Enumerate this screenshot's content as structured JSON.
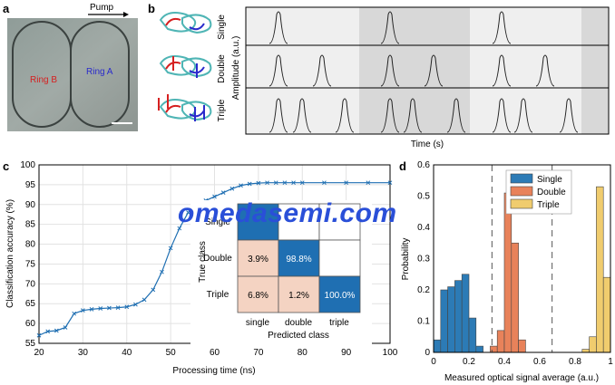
{
  "panels": {
    "a": {
      "letter": "a",
      "pump_label": "Pump",
      "ring_b": "Ring B",
      "ring_a": "Ring A"
    },
    "b": {
      "letter": "b",
      "row_labels": [
        "Single",
        "Double",
        "Triple"
      ],
      "ylabel": "Amplitude (a.u.)",
      "xlabel": "Time (s)"
    },
    "c": {
      "letter": "c",
      "xlabel": "Processing time (ns)",
      "ylabel": "Classification accuracy (%)",
      "confusion": {
        "row_labels": [
          "Single",
          "Double",
          "Triple"
        ],
        "col_labels": [
          "single",
          "double",
          "triple"
        ],
        "ylabel": "True class",
        "xlabel": "Predicted class",
        "cells": [
          [
            "",
            "",
            ""
          ],
          [
            "3.9%",
            "98.8%",
            ""
          ],
          [
            "6.8%",
            "1.2%",
            "100.0%"
          ]
        ],
        "colors": [
          [
            "#1f6fb2",
            "#ffffff",
            "#ffffff"
          ],
          [
            "#f4d3c2",
            "#1f6fb2",
            "#ffffff"
          ],
          [
            "#f4d3c2",
            "#f4d3c2",
            "#1f6fb2"
          ]
        ]
      }
    },
    "d": {
      "letter": "d",
      "xlabel": "Measured optical signal average (a.u.)",
      "ylabel": "Probability"
    }
  },
  "watermark": "omedasemi.com",
  "chart_data": [
    {
      "type": "line",
      "x": [
        20,
        22,
        24,
        26,
        28,
        30,
        32,
        34,
        36,
        38,
        40,
        42,
        44,
        46,
        48,
        50,
        52,
        54,
        56,
        58,
        60,
        62,
        64,
        66,
        68,
        70,
        72,
        74,
        76,
        78,
        80,
        85,
        90,
        95,
        100
      ],
      "series": [
        {
          "values": [
            57,
            58,
            58.2,
            59,
            62.5,
            63.3,
            63.6,
            63.8,
            63.9,
            64,
            64.2,
            64.8,
            66,
            68.5,
            73,
            79,
            84,
            88,
            90,
            91,
            92,
            93,
            94,
            94.8,
            95.2,
            95.4,
            95.5,
            95.5,
            95.5,
            95.5,
            95.5,
            95.5,
            95.5,
            95.5,
            95.5
          ],
          "color": "#1f6fb2"
        }
      ],
      "xlabel": "Processing time (ns)",
      "ylabel": "Classification accuracy (%)",
      "xlim": [
        20,
        100
      ],
      "ylim": [
        55,
        100
      ],
      "xticks": [
        20,
        30,
        40,
        50,
        60,
        70,
        80,
        90,
        100
      ],
      "yticks": [
        55,
        60,
        65,
        70,
        75,
        80,
        85,
        90,
        95,
        100
      ],
      "grid": true
    },
    {
      "type": "bar",
      "xlabel": "Measured optical signal average (a.u.)",
      "ylabel": "Probability",
      "xlim": [
        0,
        1
      ],
      "ylim": [
        0,
        0.6
      ],
      "xticks": [
        0,
        0.2,
        0.4,
        0.6,
        0.8,
        1
      ],
      "xtick_labels": [
        "0",
        "0.2",
        "0.4",
        "0.6",
        "0.8",
        "1"
      ],
      "yticks": [
        0,
        0.1,
        0.2,
        0.3,
        0.4,
        0.5,
        0.6
      ],
      "ytick_labels": [
        "0",
        "0.1",
        "0.2",
        "0.3",
        "0.4",
        "0.5",
        "0.6"
      ],
      "bin_width": 0.04,
      "legend_position": "top-left",
      "thresholds": [
        0.33,
        0.67
      ],
      "series": [
        {
          "name": "Single",
          "color": "#2c7bb6",
          "bins": [
            0.0,
            0.04,
            0.08,
            0.12,
            0.16,
            0.2,
            0.24
          ],
          "values": [
            0.04,
            0.2,
            0.21,
            0.23,
            0.25,
            0.11,
            0.02
          ]
        },
        {
          "name": "Double",
          "color": "#e8825a",
          "bins": [
            0.32,
            0.36,
            0.4,
            0.44,
            0.48
          ],
          "values": [
            0.02,
            0.07,
            0.51,
            0.35,
            0.04
          ]
        },
        {
          "name": "Triple",
          "color": "#f0cc6e",
          "bins": [
            0.84,
            0.88,
            0.92,
            0.96
          ],
          "values": [
            0.01,
            0.05,
            0.53,
            0.24
          ]
        }
      ]
    }
  ]
}
